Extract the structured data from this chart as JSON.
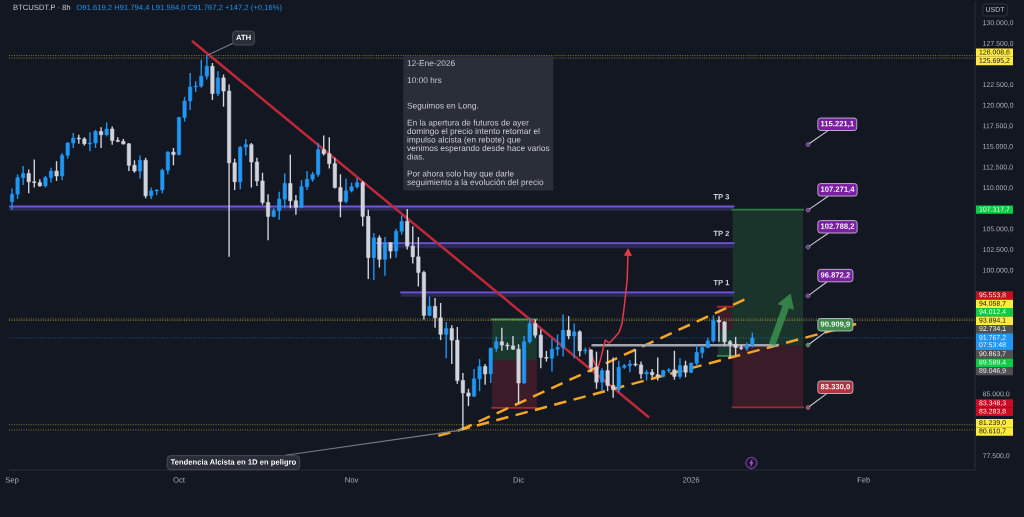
{
  "chart_data": {
    "type": "candlestick",
    "title": "BTCUSDT.P · 8h",
    "subtitle": "O91.619,2 H91.794,4 L91.594,0 C91.767,2 +147,2 (+0,16%)",
    "ylabel": "USDT",
    "xlim": [
      "2025-08-31T11:00",
      "2026-02-21T00:00"
    ],
    "xticks": [
      {
        "value": "2025-09-01",
        "label": "Sep"
      },
      {
        "value": "2025-10-01",
        "label": "Oct"
      },
      {
        "value": "2025-11-01",
        "label": "Nov"
      },
      {
        "value": "2025-12-01",
        "label": "Dic"
      },
      {
        "value": "2026-01-01",
        "label": "2026"
      },
      {
        "value": "2026-02-01",
        "label": "Feb"
      }
    ],
    "ylim": [
      75750,
      132500
    ],
    "yticks": [
      {
        "value": 130000,
        "label": "130.000,0"
      },
      {
        "value": 127500,
        "label": "127.500,0"
      },
      {
        "value": 122500,
        "label": "122.500,0"
      },
      {
        "value": 120000,
        "label": "120.000,0"
      },
      {
        "value": 117500,
        "label": "117.500,0"
      },
      {
        "value": 115000,
        "label": "115.000,0"
      },
      {
        "value": 112500,
        "label": "112.500,0"
      },
      {
        "value": 110000,
        "label": "110.000,0"
      },
      {
        "value": 105000,
        "label": "105.000,0"
      },
      {
        "value": 102500,
        "label": "102.500,0"
      },
      {
        "value": 100000,
        "label": "100.000,0"
      },
      {
        "value": 85000,
        "label": "85.000,0"
      },
      {
        "value": 77500,
        "label": "77.500,0"
      }
    ],
    "series": [
      {
        "color": "#2196f3",
        "x": [
          "2025-09-01",
          "2025-09-02",
          "2025-09-03",
          "2025-09-07",
          "2025-09-08",
          "2025-09-10",
          "2025-09-11",
          "2025-09-12",
          "2025-09-15",
          "2025-09-16",
          "2025-09-18",
          "2025-09-24",
          "2025-09-26",
          "2025-09-27",
          "2025-09-28",
          "2025-09-29",
          "2025-10-01",
          "2025-10-02",
          "2025-10-03",
          "2025-10-04",
          "2025-10-05",
          "2025-10-06",
          "2025-10-08",
          "2025-10-12",
          "2025-10-13",
          "2025-10-18",
          "2025-10-19",
          "2025-10-20",
          "2025-10-23",
          "2025-10-24",
          "2025-10-25",
          "2025-10-26",
          "2025-10-31",
          "2025-11-01",
          "2025-11-02",
          "2025-11-05",
          "2025-11-07",
          "2025-11-09",
          "2025-11-10",
          "2025-11-15",
          "2025-11-18",
          "2025-11-23",
          "2025-11-24",
          "2025-11-26",
          "2025-11-27",
          "2025-12-02",
          "2025-12-03",
          "2025-12-07",
          "2025-12-08",
          "2025-12-09",
          "2025-12-11",
          "2025-12-13",
          "2025-12-16",
          "2025-12-19",
          "2025-12-20",
          "2025-12-21",
          "2025-12-24",
          "2025-12-27",
          "2025-12-28",
          "2025-12-30",
          "2026-01-01",
          "2026-01-02",
          "2026-01-03",
          "2026-01-04",
          "2026-01-05",
          "2026-01-11",
          "2026-01-12"
        ],
        "ohlc": [
          [
            108300,
            109900,
            107300,
            109200
          ],
          [
            109200,
            111600,
            108600,
            111200
          ],
          [
            111200,
            112600,
            110300,
            111700
          ],
          [
            110200,
            111400,
            110000,
            111200
          ],
          [
            111200,
            112400,
            110600,
            112000
          ],
          [
            111400,
            114200,
            110900,
            113900
          ],
          [
            113900,
            115500,
            113500,
            115400
          ],
          [
            115400,
            116600,
            114800,
            116000
          ],
          [
            115300,
            116700,
            114400,
            115400
          ],
          [
            115400,
            117000,
            114800,
            116800
          ],
          [
            116400,
            117900,
            116200,
            117100
          ],
          [
            112000,
            113900,
            111100,
            113300
          ],
          [
            109000,
            110000,
            108600,
            109600
          ],
          [
            109600,
            109800,
            109100,
            109700
          ],
          [
            109700,
            112300,
            109300,
            112100
          ],
          [
            112100,
            114400,
            111600,
            114300
          ],
          [
            114000,
            118600,
            113900,
            118500
          ],
          [
            118500,
            121000,
            118000,
            120500
          ],
          [
            120500,
            123900,
            119400,
            122200
          ],
          [
            122200,
            122900,
            121600,
            122300
          ],
          [
            122300,
            125500,
            122100,
            123500
          ],
          [
            123500,
            126008.6,
            123100,
            124700
          ],
          [
            121400,
            124100,
            121100,
            123300
          ],
          [
            110700,
            115000,
            109800,
            114900
          ],
          [
            114900,
            115900,
            113900,
            115200
          ],
          [
            106500,
            107500,
            106400,
            107200
          ],
          [
            107200,
            109500,
            106100,
            108600
          ],
          [
            108600,
            111700,
            107500,
            110500
          ],
          [
            107600,
            110900,
            107500,
            110100
          ],
          [
            110100,
            112000,
            109700,
            111000
          ],
          [
            111000,
            111900,
            110700,
            111600
          ],
          [
            111600,
            115400,
            111300,
            114600
          ],
          [
            108300,
            111100,
            108100,
            109600
          ],
          [
            109600,
            110600,
            109400,
            110100
          ],
          [
            110100,
            111200,
            109900,
            110600
          ],
          [
            101500,
            104500,
            98800,
            103900
          ],
          [
            101300,
            104000,
            99300,
            103300
          ],
          [
            102300,
            105000,
            101500,
            104700
          ],
          [
            104700,
            106600,
            104300,
            105900
          ],
          [
            94500,
            96800,
            94400,
            95600
          ],
          [
            92200,
            93700,
            89300,
            92900
          ],
          [
            84700,
            88000,
            84600,
            86800
          ],
          [
            86800,
            89200,
            85300,
            88300
          ],
          [
            87400,
            90600,
            86300,
            90500
          ],
          [
            90500,
            91900,
            90100,
            91300
          ],
          [
            86300,
            92000,
            86200,
            91300
          ],
          [
            91300,
            94200,
            91100,
            93500
          ],
          [
            89300,
            91700,
            87700,
            90400
          ],
          [
            90400,
            92200,
            89600,
            90600
          ],
          [
            90600,
            94600,
            89500,
            92700
          ],
          [
            92000,
            93500,
            89300,
            92500
          ],
          [
            90200,
            90600,
            89800,
            90300
          ],
          [
            86400,
            88100,
            85300,
            87800
          ],
          [
            85500,
            89000,
            85200,
            88200
          ],
          [
            88200,
            88600,
            88000,
            88400
          ],
          [
            88400,
            89100,
            87600,
            88600
          ],
          [
            87400,
            87900,
            86600,
            87600
          ],
          [
            87100,
            87900,
            87000,
            87800
          ],
          [
            87800,
            88100,
            87500,
            87900
          ],
          [
            87100,
            89300,
            86800,
            88400
          ],
          [
            87600,
            88800,
            87500,
            88700
          ],
          [
            88700,
            90900,
            88400,
            90000
          ],
          [
            90000,
            90700,
            89300,
            90600
          ],
          [
            90600,
            91800,
            90500,
            91400
          ],
          [
            91400,
            94500,
            91200,
            93900
          ],
          [
            90500,
            91200,
            90200,
            90900
          ],
          [
            90900,
            92400,
            90600,
            91767.2
          ]
        ]
      },
      {
        "color": "#d1d4dc",
        "x": [
          "2025-09-04",
          "2025-09-05",
          "2025-09-06",
          "2025-09-09",
          "2025-09-13",
          "2025-09-14",
          "2025-09-17",
          "2025-09-19",
          "2025-09-20",
          "2025-09-21",
          "2025-09-22",
          "2025-09-23",
          "2025-09-25",
          "2025-09-30",
          "2025-10-07",
          "2025-10-09",
          "2025-10-10",
          "2025-10-11",
          "2025-10-14",
          "2025-10-15",
          "2025-10-16",
          "2025-10-17",
          "2025-10-21",
          "2025-10-22",
          "2025-10-27",
          "2025-10-28",
          "2025-10-29",
          "2025-10-30",
          "2025-11-03",
          "2025-11-04",
          "2025-11-06",
          "2025-11-08",
          "2025-11-11",
          "2025-11-12",
          "2025-11-13",
          "2025-11-14",
          "2025-11-16",
          "2025-11-17",
          "2025-11-19",
          "2025-11-20",
          "2025-11-21",
          "2025-11-22",
          "2025-11-25",
          "2025-11-28",
          "2025-11-29",
          "2025-11-30",
          "2025-12-01",
          "2025-12-04",
          "2025-12-05",
          "2025-12-06",
          "2025-12-10",
          "2025-12-12",
          "2025-12-14",
          "2025-12-15",
          "2025-12-17",
          "2025-12-18",
          "2025-12-22",
          "2025-12-23",
          "2025-12-25",
          "2025-12-26",
          "2025-12-29",
          "2025-12-31",
          "2026-01-06",
          "2026-01-07",
          "2026-01-08",
          "2026-01-09",
          "2026-01-10"
        ],
        "ohlc": [
          [
            111700,
            112200,
            109300,
            110700
          ],
          [
            110700,
            113400,
            110000,
            110600
          ],
          [
            110600,
            111000,
            110100,
            110200
          ],
          [
            112000,
            113200,
            110800,
            111400
          ],
          [
            116000,
            116400,
            115300,
            115900
          ],
          [
            115900,
            116100,
            115100,
            115300
          ],
          [
            116800,
            117300,
            114800,
            116400
          ],
          [
            117100,
            117400,
            115200,
            115700
          ],
          [
            115700,
            116100,
            115500,
            115600
          ],
          [
            115600,
            115900,
            115200,
            115300
          ],
          [
            115300,
            115400,
            112000,
            112700
          ],
          [
            112700,
            113300,
            111800,
            112000
          ],
          [
            113300,
            113600,
            108700,
            109000
          ],
          [
            114300,
            114800,
            112700,
            114000
          ],
          [
            124700,
            125100,
            120600,
            121400
          ],
          [
            123300,
            123700,
            119800,
            121700
          ],
          [
            121700,
            122500,
            101600,
            113000
          ],
          [
            113000,
            113500,
            109700,
            110700
          ],
          [
            115200,
            115400,
            110000,
            113100
          ],
          [
            113100,
            113600,
            110200,
            110800
          ],
          [
            110800,
            111800,
            107900,
            108200
          ],
          [
            108200,
            109200,
            103600,
            106500
          ],
          [
            110500,
            114000,
            107500,
            108400
          ],
          [
            108400,
            109100,
            106700,
            107600
          ],
          [
            114600,
            116300,
            113900,
            114100
          ],
          [
            114100,
            116100,
            112300,
            112900
          ],
          [
            112900,
            113600,
            109900,
            110000
          ],
          [
            110000,
            111600,
            106400,
            108300
          ],
          [
            110600,
            110800,
            105300,
            106500
          ],
          [
            106500,
            107300,
            98900,
            101500
          ],
          [
            103900,
            104200,
            100300,
            101300
          ],
          [
            103300,
            103400,
            101400,
            102300
          ],
          [
            105900,
            107400,
            102500,
            102900
          ],
          [
            102900,
            105300,
            100800,
            101600
          ],
          [
            101600,
            104000,
            98000,
            99700
          ],
          [
            99700,
            99900,
            94000,
            94500
          ],
          [
            95600,
            96600,
            93000,
            94200
          ],
          [
            94200,
            96000,
            91500,
            92200
          ],
          [
            92900,
            93300,
            88600,
            91500
          ],
          [
            91500,
            93100,
            86200,
            86600
          ],
          [
            86600,
            87500,
            80610.7,
            85100
          ],
          [
            85100,
            85600,
            83500,
            84700
          ],
          [
            88300,
            88600,
            86100,
            87400
          ],
          [
            91300,
            93000,
            90200,
            90900
          ],
          [
            90900,
            91200,
            90300,
            90800
          ],
          [
            90800,
            92000,
            90300,
            90400
          ],
          [
            90400,
            91000,
            83800,
            86300
          ],
          [
            93500,
            94000,
            91800,
            92100
          ],
          [
            92100,
            92800,
            88100,
            89400
          ],
          [
            89400,
            90200,
            88900,
            89300
          ],
          [
            92700,
            94400,
            91600,
            92000
          ],
          [
            92500,
            92700,
            89500,
            90200
          ],
          [
            90300,
            90400,
            87600,
            88200
          ],
          [
            88200,
            90100,
            85600,
            86400
          ],
          [
            87800,
            90300,
            85300,
            86000
          ],
          [
            86000,
            89400,
            84500,
            85500
          ],
          [
            88600,
            90400,
            88300,
            88500
          ],
          [
            88500,
            88900,
            86800,
            87400
          ],
          [
            87600,
            88000,
            87000,
            87300
          ],
          [
            87300,
            89400,
            86600,
            87100
          ],
          [
            87900,
            90200,
            86700,
            87100
          ],
          [
            88400,
            89000,
            87000,
            87600
          ],
          [
            93900,
            94400,
            91300,
            93700
          ],
          [
            93700,
            93800,
            90800,
            91300
          ],
          [
            91300,
            91500,
            89300,
            91000
          ],
          [
            91000,
            91900,
            89600,
            90600
          ],
          [
            90600,
            90900,
            90300,
            90500
          ]
        ]
      },
      {
        "type": "line",
        "color": "#c0283a",
        "line_style": "solid",
        "x": [
          "2025-10-03T11:00",
          "2025-12-24T07:00"
        ],
        "values": [
          127700,
          82200
        ]
      },
      {
        "type": "line",
        "color": "#f5a623",
        "line_style": "dashed",
        "x": [
          "2025-11-16T14:00",
          "2026-01-31T12:00"
        ],
        "values": [
          79900,
          93600
        ]
      },
      {
        "type": "line",
        "color": "#f5a623",
        "line_style": "dashed",
        "x": [
          "2025-11-20T13:00",
          "2026-01-10T14:00"
        ],
        "values": [
          80600,
          96400
        ]
      },
      {
        "type": "line",
        "color": "#a3a6af",
        "line_style": "solid",
        "x": [
          "2025-12-14T07:00",
          "2026-01-16T12:00"
        ],
        "values": [
          90863.7,
          90863.7
        ]
      },
      {
        "type": "line",
        "name": "TP 3",
        "color": "#6f55d9",
        "x": [
          "2025-08-31T11:00",
          "2026-01-08T15:00"
        ],
        "values": [
          107700,
          107700
        ],
        "lower": [
          107200,
          107200
        ],
        "upper": [
          107700,
          107700
        ]
      },
      {
        "type": "line",
        "name": "TP 2",
        "color": "#6f55d9",
        "x": [
          "2025-11-05T12:00",
          "2026-01-08T15:00"
        ],
        "values": [
          103250,
          103250
        ],
        "lower": [
          102650,
          102650
        ],
        "upper": [
          103250,
          103250
        ]
      },
      {
        "type": "line",
        "name": "TP 1",
        "color": "#6f55d9",
        "x": [
          "2025-11-09T21:00",
          "2026-01-08T15:00"
        ],
        "values": [
          97300,
          97300
        ],
        "lower": [
          96750,
          96750
        ],
        "upper": [
          97300,
          97300
        ]
      },
      {
        "type": "line",
        "color": "#2e8b4a",
        "x": [
          "2025-11-26T06:00",
          "2025-12-04T07:00"
        ],
        "values": [
          94012.4,
          94012.4
        ],
        "lower": [
          89046.9,
          89046.9
        ],
        "upper": [
          94012.4,
          94012.4
        ]
      },
      {
        "type": "line",
        "color": "#a82a38",
        "x": [
          "2025-11-26T06:00",
          "2025-12-04T07:00"
        ],
        "values": [
          83283.8,
          83283.8
        ],
        "lower": [
          83283.8,
          83283.8
        ],
        "upper": [
          89046.9,
          89046.9
        ]
      },
      {
        "type": "line",
        "color": "#a82a38",
        "x": [
          "2026-01-05T19:00",
          "2026-01-08T11:00"
        ],
        "values": [
          95553.8,
          95553.8
        ],
        "lower": [
          92734.1,
          92734.1
        ],
        "upper": [
          95553.8,
          95553.8
        ]
      },
      {
        "type": "line",
        "color": "#2e8b4a",
        "x": [
          "2026-01-05T19:00",
          "2026-01-08T11:00"
        ],
        "values": [
          89589.4,
          89589.4
        ],
        "lower": [
          89589.4,
          89589.4
        ],
        "upper": [
          92734.1,
          92734.1
        ]
      },
      {
        "type": "line",
        "color": "#2e7d46",
        "x": [
          "2026-01-08T11:00",
          "2026-01-21T03:00"
        ],
        "values": [
          107317.7,
          107317.7
        ],
        "lower": [
          90863.7,
          90863.7
        ],
        "upper": [
          107317.7,
          107317.7
        ]
      },
      {
        "type": "line",
        "color": "#9a2a3a",
        "x": [
          "2026-01-08T11:00",
          "2026-01-21T03:00"
        ],
        "values": [
          83348.3,
          83348.3
        ],
        "lower": [
          83348.3,
          83348.3
        ],
        "upper": [
          90863.7,
          90863.7
        ]
      },
      {
        "type": "scatter",
        "marker": "circle",
        "x": [
          "2026-01-22",
          "2026-01-22",
          "2026-01-22",
          "2026-01-22",
          "2026-01-22",
          "2026-01-22"
        ],
        "values": [
          115221.1,
          107271.4,
          102788.2,
          96872.2,
          90909.9,
          83330.0
        ],
        "colors": [
          "#7b1fa2",
          "#7b1fa2",
          "#7b1fa2",
          "#7b1fa2",
          "#3f8a4c",
          "#b2323f"
        ],
        "value_labels": [
          "115.221,1",
          "107.271,4",
          "102.788,2",
          "96.872,2",
          "90.909,9",
          "83.330,0"
        ]
      }
    ],
    "ref_lines": [
      {
        "axis": "y",
        "value": 126008.6,
        "label": "126.008,6",
        "color": "#ffeb3b",
        "line_style": "dotted"
      },
      {
        "axis": "y",
        "value": 125695.2,
        "label": "125.695,2",
        "color": "#ffeb3b",
        "line_style": "dotted"
      },
      {
        "axis": "y",
        "value": 94058.7,
        "label": "94.058,7",
        "color": "#ffeb3b",
        "line_style": "dotted"
      },
      {
        "axis": "y",
        "value": 93894.1,
        "label": "93.894,1",
        "color": "#ffeb3b",
        "line_style": "dotted"
      },
      {
        "axis": "y",
        "value": 91767.2,
        "label": "91.767,2\n07:53:48",
        "color": "#2196f3",
        "line_style": "dotted"
      },
      {
        "axis": "y",
        "value": 81239.0,
        "label": "81.239,0",
        "color": "#ffeb3b",
        "line_style": "dotted"
      },
      {
        "axis": "y",
        "value": 80610.7,
        "label": "80.610,7",
        "color": "#ffeb3b",
        "line_style": "dotted"
      }
    ],
    "annotations": [
      "12-Ene-2026\n\n10:00 hrs\n\n\nSeguimos en Long.\n\nEn la apertura de futuros de ayer\ndomingo el precio intento retomar el\nimpulso alcista (en rebote) que\nvenimos esperando desde hace varios\ndias.\n\nPor ahora solo hay que darle\nseguimiento a la evolución del precio",
      {
        "text": "ATH",
        "x": "2025-10-06",
        "y": 126008.6
      },
      {
        "text": "Tendencia Alcista en 1D en peligro",
        "x": "2025-11-21",
        "y": 80610.7
      },
      "107.317,7",
      "95.553,8",
      "94.012,4",
      "92.734,1",
      "90.863,7",
      "89.589,4",
      "89.046,9",
      "83.348,3",
      "83.283,8"
    ]
  }
}
